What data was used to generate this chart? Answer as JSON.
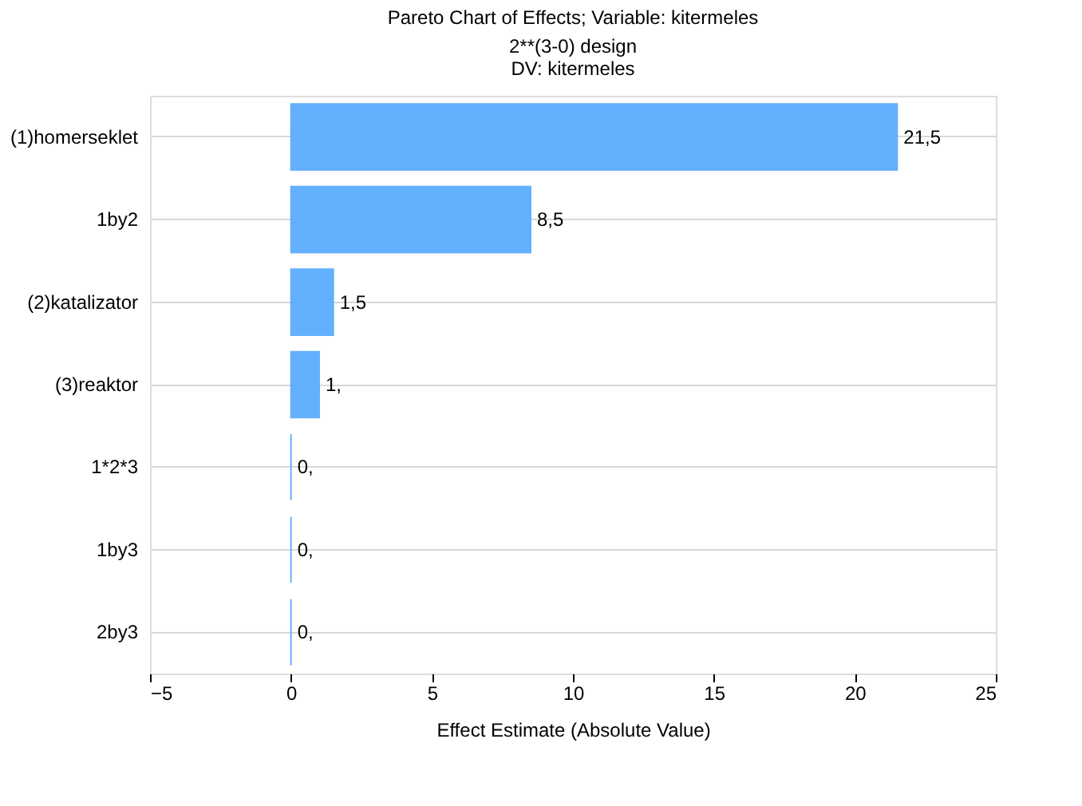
{
  "chart_data": {
    "type": "bar",
    "orientation": "horizontal",
    "title": "Pareto Chart of Effects; Variable: kitermeles",
    "subtitle": "2**(3-0) design\nDV: kitermeles",
    "xlabel": "Effect Estimate (Absolute Value)",
    "categories": [
      "(1)homerseklet",
      "1by2",
      "(2)katalizator",
      "(3)reaktor",
      "1*2*3",
      "1by3",
      "2by3"
    ],
    "values": [
      21.5,
      8.5,
      1.5,
      1,
      0,
      0,
      0
    ],
    "value_labels": [
      "21,5",
      "8,5",
      "1,5",
      "1,",
      "0,",
      "0,",
      "0,"
    ],
    "color": "#63b0ff",
    "xlim": [
      -5,
      25
    ],
    "xticks": [
      -5,
      0,
      5,
      10,
      15,
      20,
      25
    ],
    "grid": "y"
  }
}
